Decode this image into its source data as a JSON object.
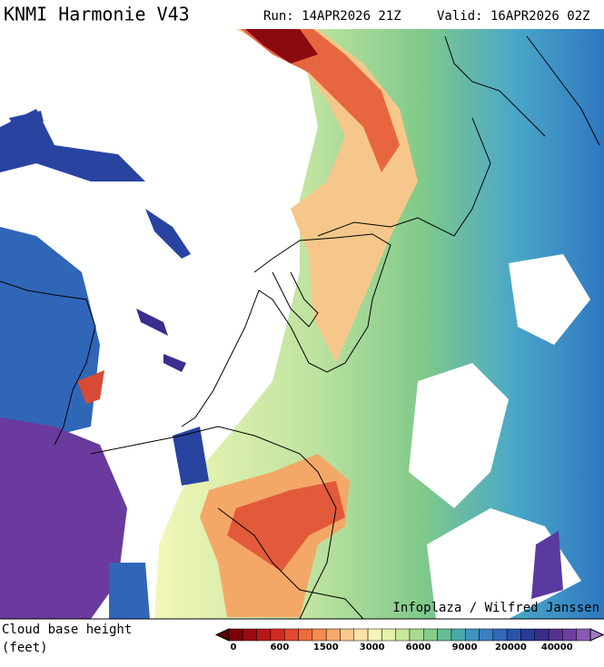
{
  "header": {
    "title": "KNMI Harmonie V43",
    "run": "Run: 14APR2026 21Z",
    "valid": "Valid: 16APR2026 02Z"
  },
  "credit": "Infoplaza / Wilfred Janssen",
  "legend": {
    "title": "Cloud base height",
    "unit": "(feet)",
    "labels": [
      0,
      600,
      1500,
      3000,
      6000,
      9000,
      20000,
      40000
    ]
  }
}
